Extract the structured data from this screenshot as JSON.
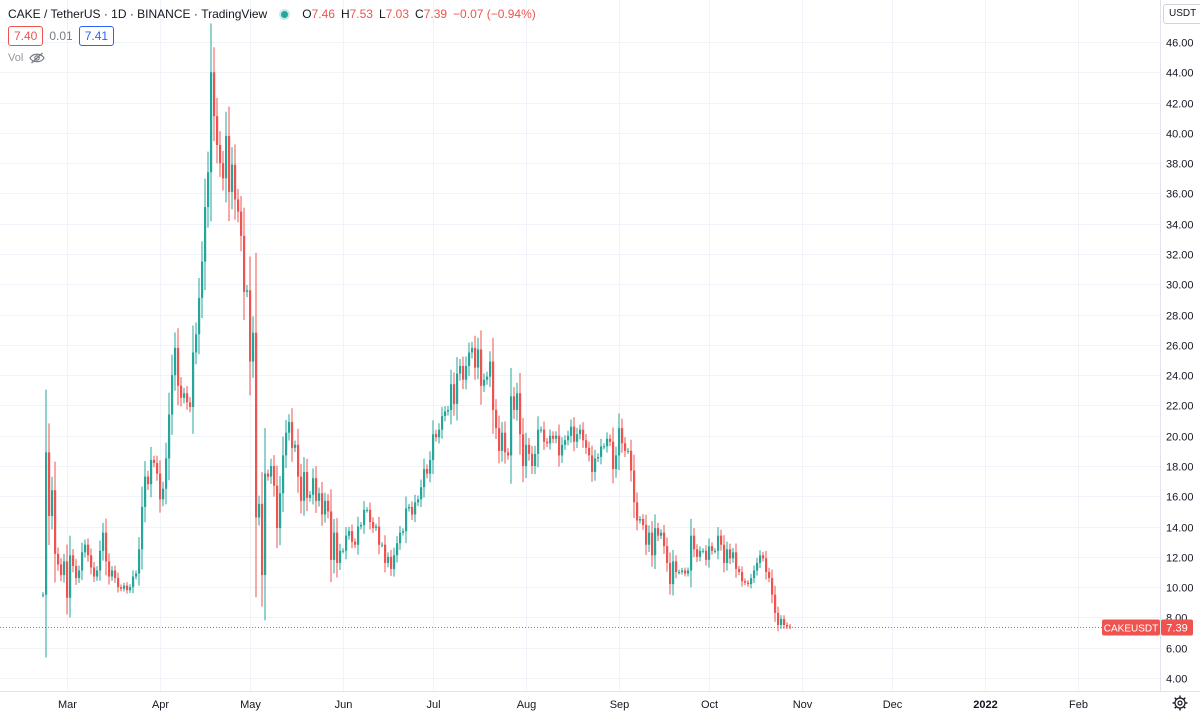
{
  "legend": {
    "symbol": "CAKE / TetherUS",
    "interval": "1D",
    "exchange": "BINANCE",
    "source": "TradingView",
    "open_label": "O",
    "open": "7.46",
    "high_label": "H",
    "high": "7.53",
    "low_label": "L",
    "low": "7.03",
    "close_label": "C",
    "close": "7.39",
    "change": "−0.07 (−0.94%)"
  },
  "quote": {
    "sell": "7.40",
    "spread": "0.01",
    "buy": "7.41"
  },
  "volume": {
    "label": "Vol"
  },
  "currency": "USDT",
  "price_tag": {
    "symbol": "CAKEUSDT",
    "value": "7.39"
  },
  "colors": {
    "up": "#26a69a",
    "down": "#ef5350",
    "grid": "#f0f3fa",
    "text": "#131722"
  },
  "icons": {
    "live": "live-dot",
    "visibility": "eye-off-icon",
    "settings": "gear-icon"
  },
  "chart_data": {
    "type": "candlestick",
    "ylim": [
      3,
      47
    ],
    "y_ticks": [
      "46.00",
      "44.00",
      "42.00",
      "40.00",
      "38.00",
      "36.00",
      "34.00",
      "32.00",
      "30.00",
      "28.00",
      "26.00",
      "24.00",
      "22.00",
      "20.00",
      "18.00",
      "16.00",
      "14.00",
      "12.00",
      "10.00",
      "8.00",
      "6.00",
      "4.00"
    ],
    "x_ticks": [
      "Mar",
      "Apr",
      "May",
      "Jun",
      "Jul",
      "Aug",
      "Sep",
      "Oct",
      "Nov",
      "Dec",
      "2022",
      "Feb"
    ],
    "x_tick_days": [
      0,
      31,
      61,
      92,
      122,
      153,
      184,
      214,
      245,
      275,
      306,
      337
    ],
    "first_candle_day": -8,
    "last_price": 7.39,
    "closes": [
      9.5,
      18.9,
      14.7,
      16.4,
      12.2,
      11.5,
      10.8,
      11.7,
      9.3,
      12.1,
      11.4,
      10.6,
      11.1,
      12.3,
      12.8,
      12.1,
      11.3,
      10.7,
      11.1,
      12.4,
      13.6,
      11.7,
      10.7,
      11.1,
      10.6,
      10.0,
      9.9,
      10.1,
      9.8,
      10.0,
      10.7,
      10.9,
      12.5,
      15.3,
      17.3,
      16.8,
      18.4,
      18.2,
      17.5,
      15.8,
      16.5,
      18.5,
      21.4,
      24.0,
      25.8,
      23.3,
      22.5,
      22.8,
      22.2,
      21.9,
      25.5,
      26.7,
      29.1,
      31.5,
      35.1,
      37.4,
      44.0,
      41.1,
      39.2,
      38.0,
      37.0,
      39.8,
      36.1,
      37.9,
      35.6,
      34.8,
      33.2,
      29.5,
      29.6,
      24.9,
      26.8,
      14.6,
      15.5,
      10.8,
      17.5,
      17.3,
      18.0,
      16.7,
      13.9,
      16.2,
      18.7,
      20.2,
      20.9,
      19.2,
      19.4,
      17.3,
      15.7,
      17.6,
      15.9,
      16.1,
      17.2,
      15.7,
      16.2,
      14.8,
      15.7,
      15.0,
      11.8,
      13.6,
      11.6,
      12.4,
      12.4,
      13.4,
      13.7,
      13.0,
      12.8,
      14.0,
      14.1,
      15.1,
      15.1,
      14.3,
      13.9,
      14.0,
      12.8,
      12.8,
      11.6,
      12.0,
      11.2,
      12.1,
      12.9,
      13.6,
      13.7,
      15.2,
      15.3,
      14.8,
      15.6,
      15.8,
      16.6,
      17.8,
      17.5,
      18.4,
      20.1,
      19.9,
      20.4,
      21.3,
      21.6,
      21.7,
      23.4,
      22.1,
      24.1,
      24.6,
      23.7,
      24.6,
      25.5,
      25.8,
      24.5,
      25.7,
      23.3,
      23.7,
      23.9,
      24.9,
      21.7,
      20.5,
      19.0,
      20.2,
      18.9,
      18.7,
      22.6,
      21.7,
      22.8,
      20.1,
      18.0,
      19.4,
      18.8,
      18.0,
      18.8,
      20.4,
      20.4,
      19.6,
      19.5,
      20.0,
      19.8,
      20.0,
      18.7,
      19.4,
      19.7,
      20.0,
      20.6,
      19.6,
      20.1,
      20.4,
      19.7,
      19.2,
      18.7,
      17.6,
      18.5,
      18.6,
      19.3,
      19.3,
      19.8,
      19.6,
      17.8,
      18.7,
      20.5,
      19.5,
      19.0,
      19.0,
      17.7,
      15.6,
      14.4,
      14.5,
      14.1,
      12.8,
      13.6,
      12.1,
      13.9,
      13.4,
      13.6,
      12.7,
      11.6,
      10.2,
      11.7,
      11.0,
      11.0,
      11.1,
      10.9,
      11.1,
      13.4,
      12.5,
      12.0,
      12.4,
      12.4,
      11.8,
      12.7,
      12.4,
      12.4,
      13.4,
      12.8,
      11.6,
      12.5,
      11.9,
      12.3,
      11.2,
      11.0,
      10.4,
      10.3,
      10.2,
      10.6,
      11.1,
      11.6,
      12.1,
      11.9,
      11.0,
      10.6,
      9.5,
      8.3,
      7.5,
      7.9,
      7.5,
      7.4,
      7.39
    ]
  }
}
